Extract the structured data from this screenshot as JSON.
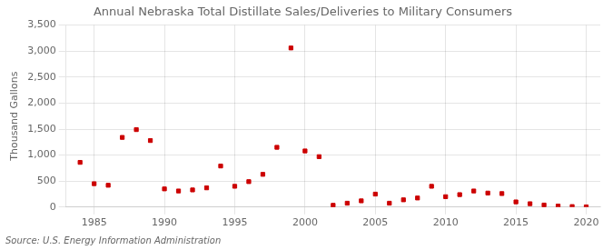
{
  "chart_data": {
    "type": "scatter",
    "title": "Annual Nebraska Total Distillate Sales/Deliveries to Military Consumers",
    "ylabel": "Thousand Gallons",
    "annotation": "Source: U.S. Energy Information Administration",
    "x": [
      1984,
      1985,
      1986,
      1987,
      1988,
      1989,
      1990,
      1991,
      1992,
      1993,
      1994,
      1995,
      1996,
      1997,
      1998,
      1999,
      2000,
      2001,
      2002,
      2003,
      2004,
      2005,
      2006,
      2007,
      2008,
      2009,
      2010,
      2011,
      2012,
      2013,
      2014,
      2015,
      2016,
      2017,
      2018,
      2019,
      2020
    ],
    "values": [
      860,
      450,
      420,
      1340,
      1490,
      1280,
      350,
      310,
      330,
      370,
      790,
      400,
      490,
      630,
      1150,
      3060,
      1080,
      970,
      35,
      75,
      120,
      250,
      75,
      140,
      175,
      400,
      200,
      240,
      310,
      270,
      260,
      100,
      65,
      40,
      20,
      10,
      5
    ],
    "color": "#cc0000",
    "marker": "square",
    "xlim": [
      1983,
      2021
    ],
    "xticks": [
      1985,
      1990,
      1995,
      2000,
      2005,
      2010,
      2015,
      2020
    ],
    "ylim": [
      0,
      3500
    ],
    "yticks": [
      0,
      500,
      {
        "value": 1000,
        "label": "1,000"
      },
      {
        "value": 1500,
        "label": "1,500"
      },
      {
        "value": 2000,
        "label": "2,000"
      },
      {
        "value": 2500,
        "label": "2,500"
      },
      {
        "value": 3000,
        "label": "3,000"
      },
      {
        "value": 3500,
        "label": "3,500"
      }
    ],
    "grid": true
  }
}
